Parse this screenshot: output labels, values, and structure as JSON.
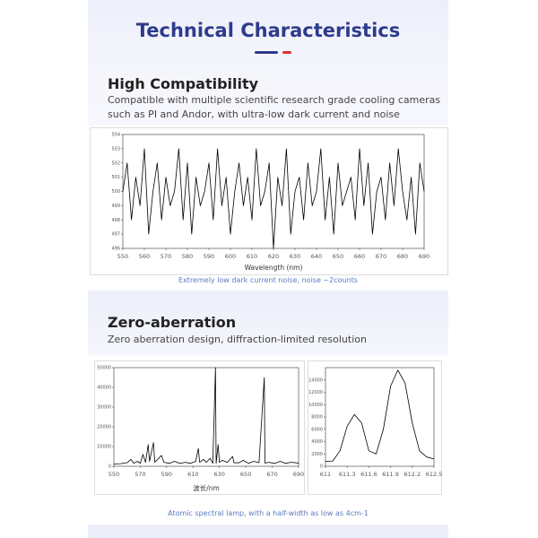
{
  "header": {
    "title": "Technical Characteristics"
  },
  "sections": [
    {
      "heading": "High Compatibility",
      "text": [
        "Compatible with multiple scientific research grade cooling cameras",
        "such as PI and Andor, with ultra-low dark current and noise"
      ],
      "caption": "Extremely low dark current noise, noise ~2counts"
    },
    {
      "heading": "Zero-aberration",
      "text": [
        "Zero aberration design, diffraction-limited resolution"
      ],
      "caption": "Atomic spectral lamp, with a half-width as low as 4cm-1"
    }
  ],
  "chart_data": [
    {
      "type": "line",
      "x_label": "Wavelength (nm)",
      "color": "#000000",
      "x": [
        550,
        552,
        554,
        556,
        558,
        560,
        562,
        564,
        566,
        568,
        570,
        572,
        574,
        576,
        578,
        580,
        582,
        584,
        586,
        588,
        590,
        592,
        594,
        596,
        598,
        600,
        602,
        604,
        606,
        608,
        610,
        612,
        614,
        616,
        618,
        620,
        622,
        624,
        626,
        628,
        630,
        632,
        634,
        636,
        638,
        640,
        642,
        644,
        646,
        648,
        650,
        652,
        654,
        656,
        658,
        660,
        662,
        664,
        666,
        668,
        670,
        672,
        674,
        676,
        678,
        680,
        682,
        684,
        686,
        688,
        690
      ],
      "values": [
        500,
        502,
        498,
        501,
        499,
        503,
        497,
        500,
        502,
        498,
        501,
        499,
        500,
        503,
        498,
        502,
        497,
        501,
        499,
        500,
        502,
        498,
        503,
        499,
        501,
        497,
        500,
        502,
        499,
        501,
        498,
        503,
        499,
        500,
        502,
        496,
        501,
        499,
        503,
        497,
        500,
        501,
        498,
        502,
        499,
        500,
        503,
        498,
        501,
        497,
        502,
        499,
        500,
        501,
        498,
        503,
        499,
        502,
        497,
        500,
        501,
        498,
        502,
        499,
        503,
        500,
        498,
        501,
        497,
        502,
        500
      ],
      "xlim": [
        550,
        690
      ],
      "xticks": [
        550,
        560,
        570,
        580,
        590,
        600,
        610,
        620,
        630,
        640,
        650,
        660,
        670,
        680,
        690
      ],
      "ylim": [
        496,
        504
      ],
      "yticks": [
        496,
        497,
        498,
        499,
        500,
        501,
        502,
        503,
        504
      ]
    },
    {
      "type": "line",
      "x_label": "波长/nm",
      "color": "#000000",
      "x": [
        550,
        555,
        560,
        563,
        565,
        568,
        570,
        572,
        574,
        576,
        577,
        580,
        581,
        584,
        586,
        588,
        592,
        596,
        600,
        604,
        608,
        612,
        614,
        615,
        618,
        620,
        623,
        625,
        627,
        627.5,
        629,
        630,
        632,
        636,
        640,
        641,
        645,
        648,
        652,
        656,
        660,
        664,
        664.5,
        667,
        672,
        676,
        680,
        684,
        688,
        690
      ],
      "values": [
        1200,
        1300,
        1800,
        3500,
        1500,
        2500,
        1500,
        6000,
        2000,
        11000,
        2500,
        12000,
        2000,
        4000,
        5500,
        2000,
        1500,
        2500,
        1400,
        2000,
        1500,
        2500,
        9000,
        2000,
        3500,
        2000,
        4000,
        1500,
        50000,
        1500,
        11000,
        2000,
        3000,
        2000,
        5000,
        1800,
        1800,
        3000,
        1500,
        2500,
        1800,
        45000,
        1600,
        2000,
        1500,
        2500,
        1500,
        2000,
        1800,
        1500
      ],
      "xlim": [
        550,
        690
      ],
      "xticks": [
        550,
        570,
        590,
        610,
        630,
        650,
        670,
        690
      ],
      "ylim": [
        0,
        50000
      ],
      "yticks": [
        0,
        10000,
        20000,
        30000,
        40000,
        50000
      ]
    },
    {
      "type": "line",
      "color": "#000000",
      "x": [
        611.0,
        611.1,
        611.2,
        611.3,
        611.4,
        611.5,
        611.6,
        611.7,
        611.8,
        611.9,
        612.0,
        612.1,
        612.2,
        612.3,
        612.4,
        612.5
      ],
      "values": [
        800,
        850,
        2500,
        6500,
        8400,
        7000,
        2500,
        2000,
        6000,
        13000,
        15600,
        13500,
        7000,
        2500,
        1500,
        1200
      ],
      "xlim": [
        611,
        612.5
      ],
      "xticks": [
        611,
        611.3,
        611.6,
        611.9,
        612.2,
        612.5
      ],
      "ylim": [
        0,
        16000
      ],
      "yticks": [
        0,
        2000,
        4000,
        6000,
        8000,
        10000,
        12000,
        14000
      ]
    }
  ]
}
